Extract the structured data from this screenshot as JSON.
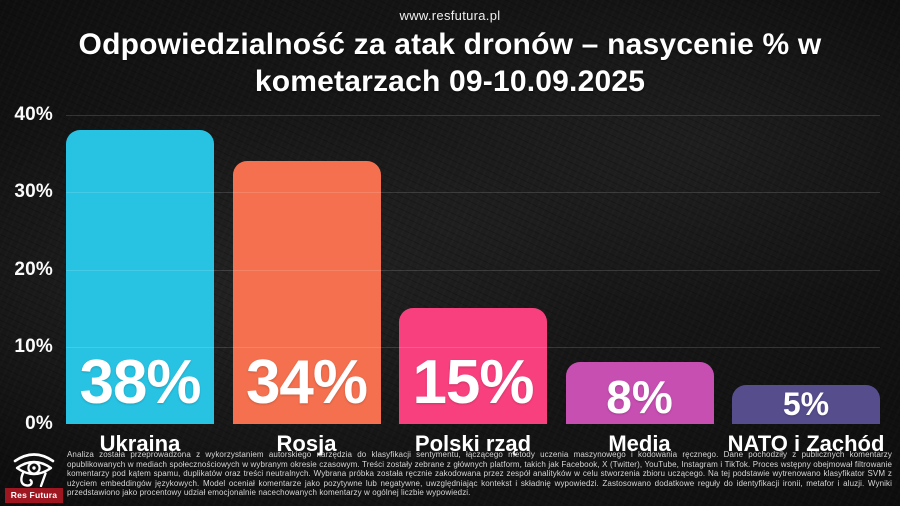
{
  "site": {
    "url": "www.resfutura.pl"
  },
  "title": "Odpowiedzialność za atak dronów – nasycenie % w kometarzach 09-10.09.2025",
  "chart_data": {
    "type": "bar",
    "title": "Odpowiedzialność za atak dronów – nasycenie % w kometarzach 09-10.09.2025",
    "categories": [
      "Ukraina",
      "Rosja",
      "Polski rząd",
      "Media",
      "NATO i Zachód"
    ],
    "values": [
      38,
      34,
      15,
      8,
      5
    ],
    "value_labels": [
      "38%",
      "34%",
      "15%",
      "8%",
      "5%"
    ],
    "bar_colors": [
      "#28c3e3",
      "#f4704e",
      "#f8407e",
      "#c74fb2",
      "#564d8d"
    ],
    "xlabel": "",
    "ylabel": "",
    "ylim": [
      0,
      40
    ],
    "yticks": [
      {
        "label": "40%",
        "value": 40
      },
      {
        "label": "30%",
        "value": 30
      },
      {
        "label": "20%",
        "value": 20
      },
      {
        "label": "10%",
        "value": 10
      },
      {
        "label": "0%",
        "value": 0
      }
    ],
    "gridlines": [
      40,
      30,
      20,
      10
    ],
    "grid": "horizontal, faint",
    "legend_position": "none"
  },
  "footer": {
    "methodology": "Analiza została przeprowadzona z wykorzystaniem autorskiego narzędzia do klasyfikacji sentymentu, łączącego metody uczenia maszynowego i kodowania ręcznego. Dane pochodziły z publicznych komentarzy opublikowanych w mediach społecznościowych w wybranym okresie czasowym. Treści zostały zebrane z głównych platform, takich jak Facebook, X (Twitter), YouTube, Instagram i TikTok. Proces wstępny obejmował filtrowanie komentarzy pod kątem spamu, duplikatów oraz treści neutralnych. Wybrana próbka została ręcznie zakodowana przez zespół analityków w celu stworzenia zbioru uczącego. Na tej podstawie wytrenowano klasyfikator SVM z użyciem embeddingów językowych. Model oceniał komentarze jako pozytywne lub negatywne, uwzględniając kontekst i składnię wypowiedzi. Zastosowano dodatkowe reguły do identyfikacji ironii, metafor i aluzji. Wyniki przedstawiono jako procentowy udział emocjonalnie nacechowanych komentarzy w ogólnej liczbie wypowiedzi.",
    "logo_text": "Res Futura"
  },
  "colors": {
    "background": "#121212",
    "text": "#ffffff",
    "gridline": "rgba(255,255,255,0.14)",
    "footer_text": "#d6d6d6",
    "logo_red": "#9e1620"
  }
}
